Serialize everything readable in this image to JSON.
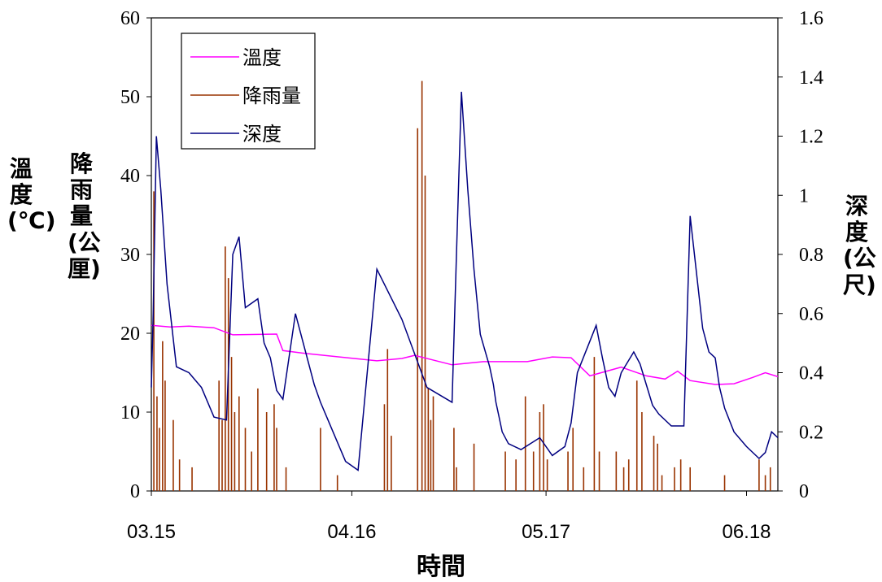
{
  "chart_data": {
    "type": "line",
    "xlabel": "時間",
    "ylabel_left_temperature": "溫度(℃)",
    "ylabel_left_rain": "降雨量(公厘)",
    "ylabel_right": "深度(公尺)",
    "x_tick_labels": [
      "03.15",
      "04.16",
      "05.17",
      "06.18"
    ],
    "x_tick_positions_day": [
      0,
      32,
      63,
      95
    ],
    "x_range_day": [
      0,
      100
    ],
    "ylim_left": [
      0,
      60
    ],
    "ylim_right": [
      0,
      1.6
    ],
    "y_left_ticks": [
      0,
      10,
      20,
      30,
      40,
      50,
      60
    ],
    "y_right_ticks": [
      "0",
      "0.2",
      "0.4",
      "0.6",
      "0.8",
      "1",
      "1.2",
      "1.4",
      "1.6"
    ],
    "legend": {
      "position": "top-left",
      "entries": [
        "溫度",
        "降雨量",
        "深度"
      ]
    },
    "colors": {
      "溫度": "#ff00ff",
      "降雨量": "#993300",
      "深度": "#000080"
    },
    "series": [
      {
        "name": "溫度",
        "axis": "left",
        "x": [
          0,
          3,
          6,
          10,
          13,
          20,
          21,
          24,
          30,
          36,
          40,
          42,
          48,
          53,
          60,
          64,
          67,
          70,
          75,
          79,
          82,
          84,
          86,
          90,
          93,
          96,
          98,
          100
        ],
        "values": [
          21,
          20.8,
          20.9,
          20.7,
          19.8,
          19.9,
          17.8,
          17.5,
          17.0,
          16.5,
          16.8,
          17.2,
          16.0,
          16.4,
          16.4,
          17.0,
          16.9,
          14.6,
          15.7,
          14.6,
          14.2,
          15.2,
          14.0,
          13.5,
          13.6,
          14.4,
          15.0,
          14.5
        ]
      },
      {
        "name": "深度",
        "axis": "right",
        "x": [
          0,
          0.3,
          0.8,
          1.5,
          2.5,
          4,
          6,
          8,
          10,
          12,
          13,
          14,
          15,
          17,
          18,
          19,
          20,
          21,
          23,
          25,
          26,
          27,
          28,
          29,
          30,
          31,
          33,
          36,
          40,
          44,
          48,
          48.7,
          49.5,
          50.5,
          51.5,
          52.5,
          54,
          54.6,
          55,
          55.5,
          56,
          57,
          59,
          62,
          64,
          66,
          67,
          68,
          71,
          72,
          73,
          74,
          75,
          77,
          78,
          79,
          80,
          81,
          83,
          85,
          86,
          88,
          89,
          90,
          90.7,
          91.5,
          93,
          95,
          97,
          98,
          99,
          100
        ],
        "values": [
          0.35,
          0.6,
          1.2,
          1.02,
          0.7,
          0.42,
          0.4,
          0.35,
          0.25,
          0.24,
          0.8,
          0.86,
          0.62,
          0.65,
          0.5,
          0.45,
          0.34,
          0.31,
          0.6,
          0.44,
          0.36,
          0.3,
          0.25,
          0.2,
          0.15,
          0.1,
          0.07,
          0.75,
          0.58,
          0.35,
          0.3,
          0.8,
          1.35,
          1.02,
          0.75,
          0.53,
          0.42,
          0.36,
          0.3,
          0.25,
          0.2,
          0.16,
          0.14,
          0.18,
          0.12,
          0.15,
          0.23,
          0.4,
          0.56,
          0.45,
          0.35,
          0.32,
          0.4,
          0.47,
          0.43,
          0.36,
          0.29,
          0.26,
          0.22,
          0.22,
          0.93,
          0.55,
          0.47,
          0.45,
          0.35,
          0.28,
          0.2,
          0.15,
          0.11,
          0.13,
          0.2,
          0.18
        ]
      },
      {
        "name": "降雨量",
        "axis": "left",
        "x": [
          0.4,
          0.9,
          1.3,
          1.8,
          2.2,
          3.5,
          4.5,
          6.5,
          10.8,
          11.3,
          11.8,
          12.3,
          12.8,
          13.3,
          14.0,
          15.0,
          16.0,
          17.0,
          18.4,
          19.6,
          20.0,
          21.5,
          27.0,
          29.7,
          37.2,
          37.7,
          38.3,
          42.5,
          43.2,
          43.7,
          44.2,
          44.6,
          45.0,
          48.3,
          48.7,
          51.5,
          56.5,
          58.2,
          59.7,
          61.0,
          62.0,
          62.6,
          63.2,
          66.5,
          67.3,
          69.0,
          70.7,
          71.5,
          74.2,
          75.4,
          76.2,
          77.5,
          78.3,
          80.2,
          80.8,
          81.5,
          83.5,
          84.5,
          86.0,
          91.5,
          97.0,
          98.0,
          98.8
        ],
        "values": [
          38,
          12,
          8,
          19,
          14,
          9,
          4,
          3,
          14,
          9,
          31,
          27,
          17,
          10,
          12,
          8,
          5,
          13,
          10,
          11,
          8,
          3,
          8,
          2,
          11,
          18,
          7,
          46,
          52,
          40,
          13,
          9,
          12,
          8,
          3,
          6,
          5,
          4,
          12,
          5,
          10,
          11,
          4,
          5,
          8,
          3,
          17,
          5,
          5,
          3,
          4,
          14,
          10,
          7,
          6,
          2,
          3,
          4,
          3,
          2,
          4,
          2,
          3
        ]
      }
    ]
  }
}
